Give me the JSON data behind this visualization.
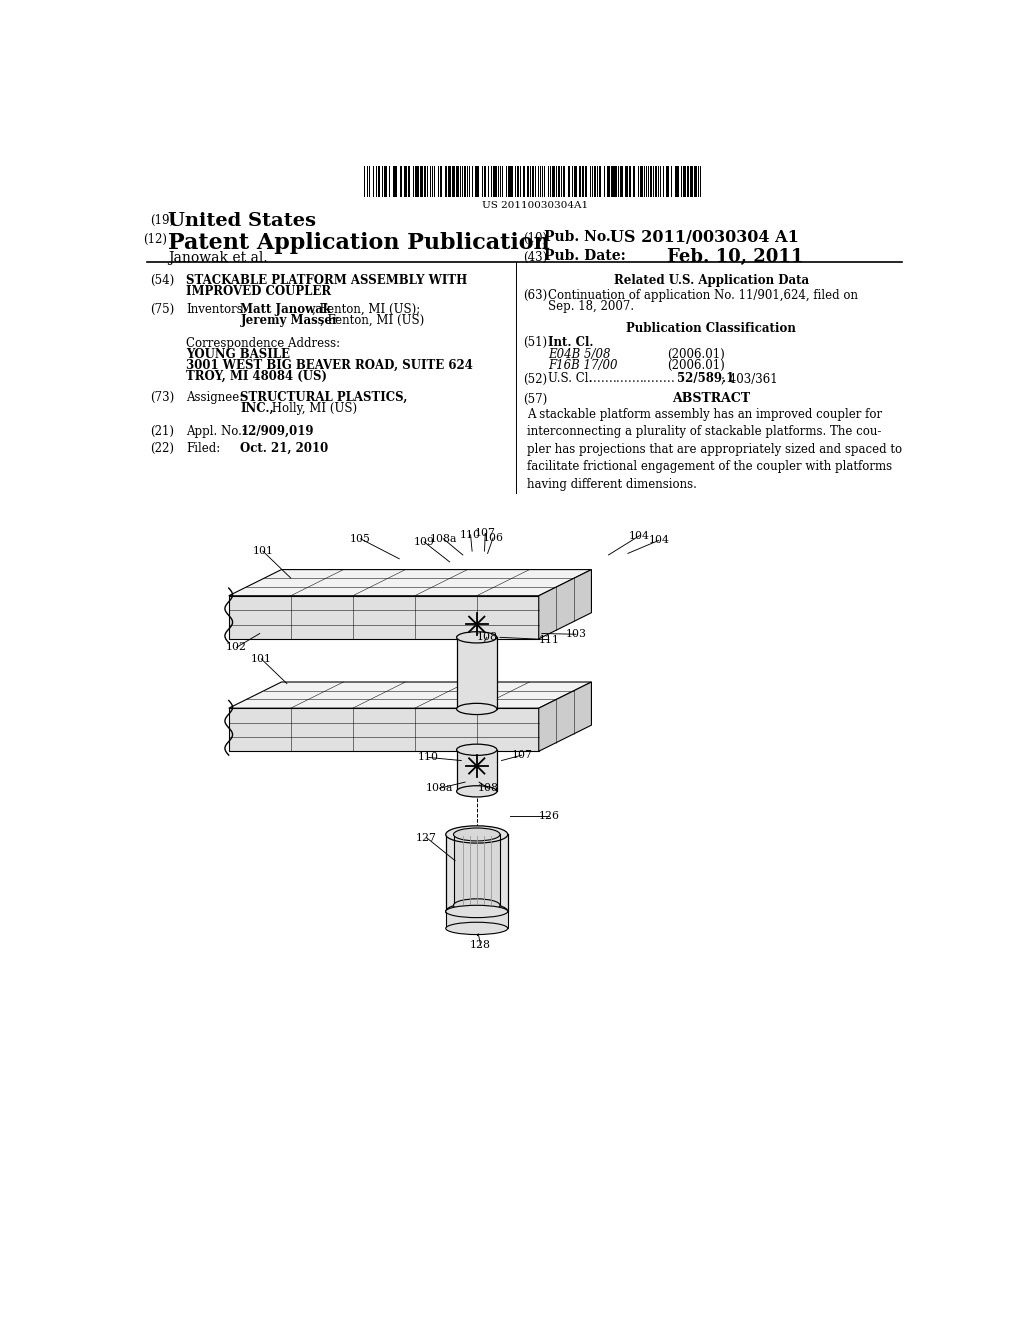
{
  "bg_color": "#ffffff",
  "barcode_text": "US 20110030304A1",
  "patent_number": "US 2011/0030304 A1",
  "pub_date": "Feb. 10, 2011",
  "applicant_line": "Janowak et al.",
  "section54_title_1": "STACKABLE PLATFORM ASSEMBLY WITH",
  "section54_title_2": "IMPROVED COUPLER",
  "inventors_bold_1": "Matt Janowak",
  "inventors_plain_1": ", Fenton, MI (US);",
  "inventors_bold_2": "Jeremy Masser",
  "inventors_plain_2": ", Fenton, MI (US)",
  "corr_label": "Correspondence Address:",
  "corr_name": "YOUNG BASILE",
  "corr_addr1": "3001 WEST BIG BEAVER ROAD, SUITE 624",
  "corr_addr2": "TROY, MI 48084 (US)",
  "assignee_bold": "STRUCTURAL PLASTICS,",
  "assignee_bold2": "INC.,",
  "assignee_plain": " Holly, MI (US)",
  "appl_no": "12/909,019",
  "filed_date": "Oct. 21, 2010",
  "related_header": "Related U.S. Application Data",
  "section63_text1": "Continuation of application No. 11/901,624, filed on",
  "section63_text2": "Sep. 18, 2007.",
  "pub_class_header": "Publication Classification",
  "e04b": "E04B 5/08",
  "f16b": "F16B 17/00",
  "year_2006": "(2006.01)",
  "us_cl_bold": "52/589.1",
  "us_cl_plain": "; 403/361",
  "abstract_text": "A stackable platform assembly has an improved coupler for\ninterconnecting a plurality of stackable platforms. The cou-\npler has projections that are appropriately sized and spaced to\nfacilitate frictional engagement of the coupler with platforms\nhaving different dimensions."
}
